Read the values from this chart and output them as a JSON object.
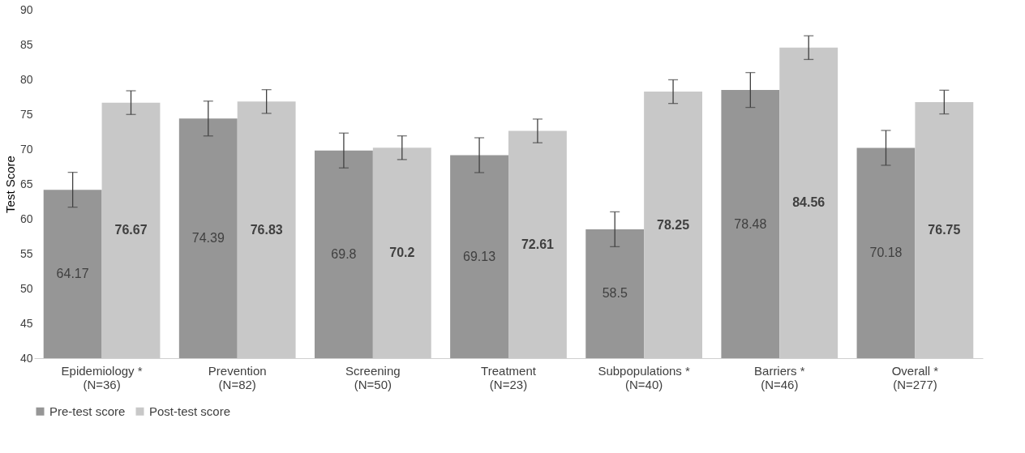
{
  "chart_data": {
    "type": "bar",
    "ylabel": "Test Score",
    "categories": [
      "Epidemiology *\n(N=36)",
      "Prevention\n(N=82)",
      "Screening\n(N=50)",
      "Treatment\n(N=23)",
      "Subpopulations *\n(N=40)",
      "Barriers *\n(N=46)",
      "Overall *\n(N=277)"
    ],
    "series": [
      {
        "name": "Pre-test score",
        "color": "#969696",
        "values": [
          64.17,
          74.39,
          69.8,
          69.13,
          58.5,
          78.48,
          70.18
        ],
        "errors": [
          2.5,
          2.5,
          2.5,
          2.5,
          2.5,
          2.5,
          2.5
        ]
      },
      {
        "name": "Post-test score",
        "color": "#c8c8c8",
        "values": [
          76.67,
          76.83,
          70.2,
          72.61,
          78.25,
          84.56,
          76.75
        ],
        "errors": [
          1.7,
          1.7,
          1.7,
          1.7,
          1.7,
          1.7,
          1.7
        ]
      }
    ],
    "ylim": [
      40,
      90
    ],
    "yticks": [
      40,
      45,
      50,
      55,
      60,
      65,
      70,
      75,
      80,
      85,
      90
    ],
    "data_labels": true,
    "grid": false,
    "legend": "bottom"
  }
}
